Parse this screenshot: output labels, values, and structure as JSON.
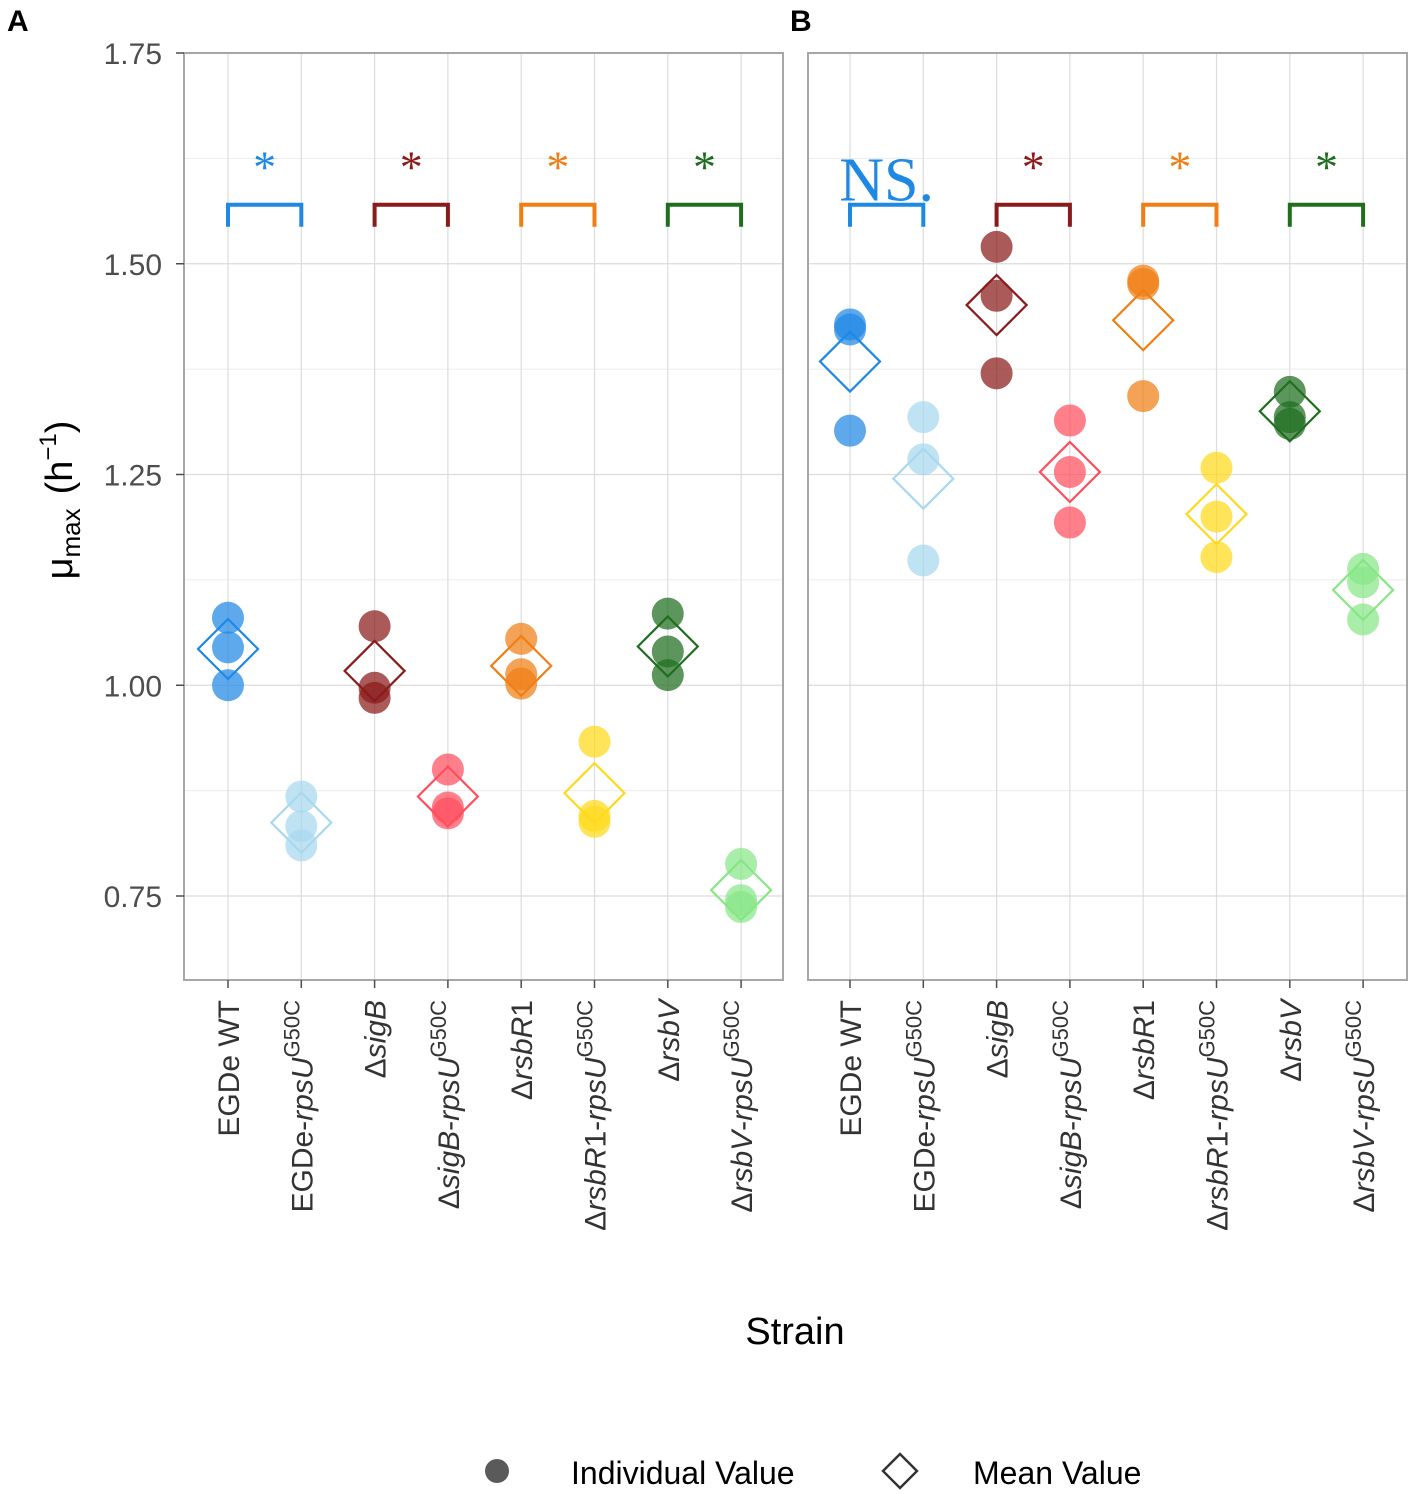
{
  "chart_data": {
    "type": "scatter",
    "xlabel": "Strain",
    "ylabel": "μmax (h−1)",
    "ylabel_parts": {
      "mu": "μ",
      "sub": "max",
      "open": "(h",
      "sup": "−1",
      "close": ")"
    },
    "ylim": [
      0.65,
      1.75
    ],
    "yticks": [
      "0.75",
      "1.00",
      "1.25",
      "1.50",
      "1.75"
    ],
    "ytick_values": [
      0.75,
      1.0,
      1.25,
      1.5,
      1.75
    ],
    "grid": true,
    "legend": {
      "position": "bottom",
      "individual_label": "Individual Value",
      "mean_label": "Mean Value"
    },
    "categories": [
      {
        "id": "wt",
        "parts": [
          {
            "t": "EGDe WT"
          }
        ]
      },
      {
        "id": "wt_mut",
        "parts": [
          {
            "t": "EGDe-"
          },
          {
            "t": "rpsU",
            "i": true
          },
          {
            "t": "G50C",
            "sup": true
          }
        ]
      },
      {
        "id": "sigB",
        "parts": [
          {
            "t": "Δ"
          },
          {
            "t": "sigB",
            "i": true
          }
        ]
      },
      {
        "id": "sigB_mut",
        "parts": [
          {
            "t": "Δ"
          },
          {
            "t": "sigB",
            "i": true
          },
          {
            "t": "-"
          },
          {
            "t": "rpsU",
            "i": true
          },
          {
            "t": "G50C",
            "sup": true
          }
        ]
      },
      {
        "id": "rsbR1",
        "parts": [
          {
            "t": "Δ"
          },
          {
            "t": "rsbR",
            "i": true
          },
          {
            "t": "1"
          }
        ]
      },
      {
        "id": "rsbR1_mut",
        "parts": [
          {
            "t": "Δ"
          },
          {
            "t": "rsbR",
            "i": true
          },
          {
            "t": "1-"
          },
          {
            "t": "rpsU",
            "i": true
          },
          {
            "t": "G50C",
            "sup": true
          }
        ]
      },
      {
        "id": "rsbV",
        "parts": [
          {
            "t": "Δ"
          },
          {
            "t": "rsbV",
            "i": true
          }
        ]
      },
      {
        "id": "rsbV_mut",
        "parts": [
          {
            "t": "Δ"
          },
          {
            "t": "rsbV",
            "i": true
          },
          {
            "t": "-"
          },
          {
            "t": "rpsU",
            "i": true
          },
          {
            "t": "G50C",
            "sup": true
          }
        ]
      }
    ],
    "colors": [
      "#1e88e5",
      "#a8d8ef",
      "#8b1a1a",
      "#ff4d5e",
      "#f07e14",
      "#ffd91a",
      "#1e6e1e",
      "#86e686"
    ],
    "bracket_colors": [
      "#1e88e5",
      "#8b1a1a",
      "#f07e14",
      "#1e6e1e"
    ],
    "panels": [
      {
        "label": "A",
        "individual": [
          [
            1.08,
            1.045,
            1.0
          ],
          [
            0.868,
            0.833,
            0.81
          ],
          [
            1.07,
            0.997,
            0.985
          ],
          [
            0.9,
            0.855,
            0.848
          ],
          [
            1.055,
            1.013,
            1.002
          ],
          [
            0.933,
            0.845,
            0.838
          ],
          [
            1.085,
            1.04,
            1.012
          ],
          [
            0.788,
            0.745,
            0.737
          ]
        ],
        "means": [
          1.043,
          0.837,
          1.017,
          0.868,
          1.023,
          0.872,
          1.046,
          0.757
        ],
        "significance": [
          "*",
          "*",
          "*",
          "*"
        ]
      },
      {
        "label": "B",
        "individual": [
          [
            1.428,
            1.422,
            1.302
          ],
          [
            1.318,
            1.268,
            1.148
          ],
          [
            1.52,
            1.462,
            1.37
          ],
          [
            1.314,
            1.253,
            1.193
          ],
          [
            1.48,
            1.476,
            1.343
          ],
          [
            1.258,
            1.2,
            1.152
          ],
          [
            1.348,
            1.318,
            1.31
          ],
          [
            1.138,
            1.122,
            1.078
          ]
        ],
        "means": [
          1.384,
          1.245,
          1.451,
          1.253,
          1.433,
          1.203,
          1.325,
          1.113
        ],
        "significance": [
          "NS.",
          "*",
          "*",
          "*"
        ]
      }
    ]
  }
}
